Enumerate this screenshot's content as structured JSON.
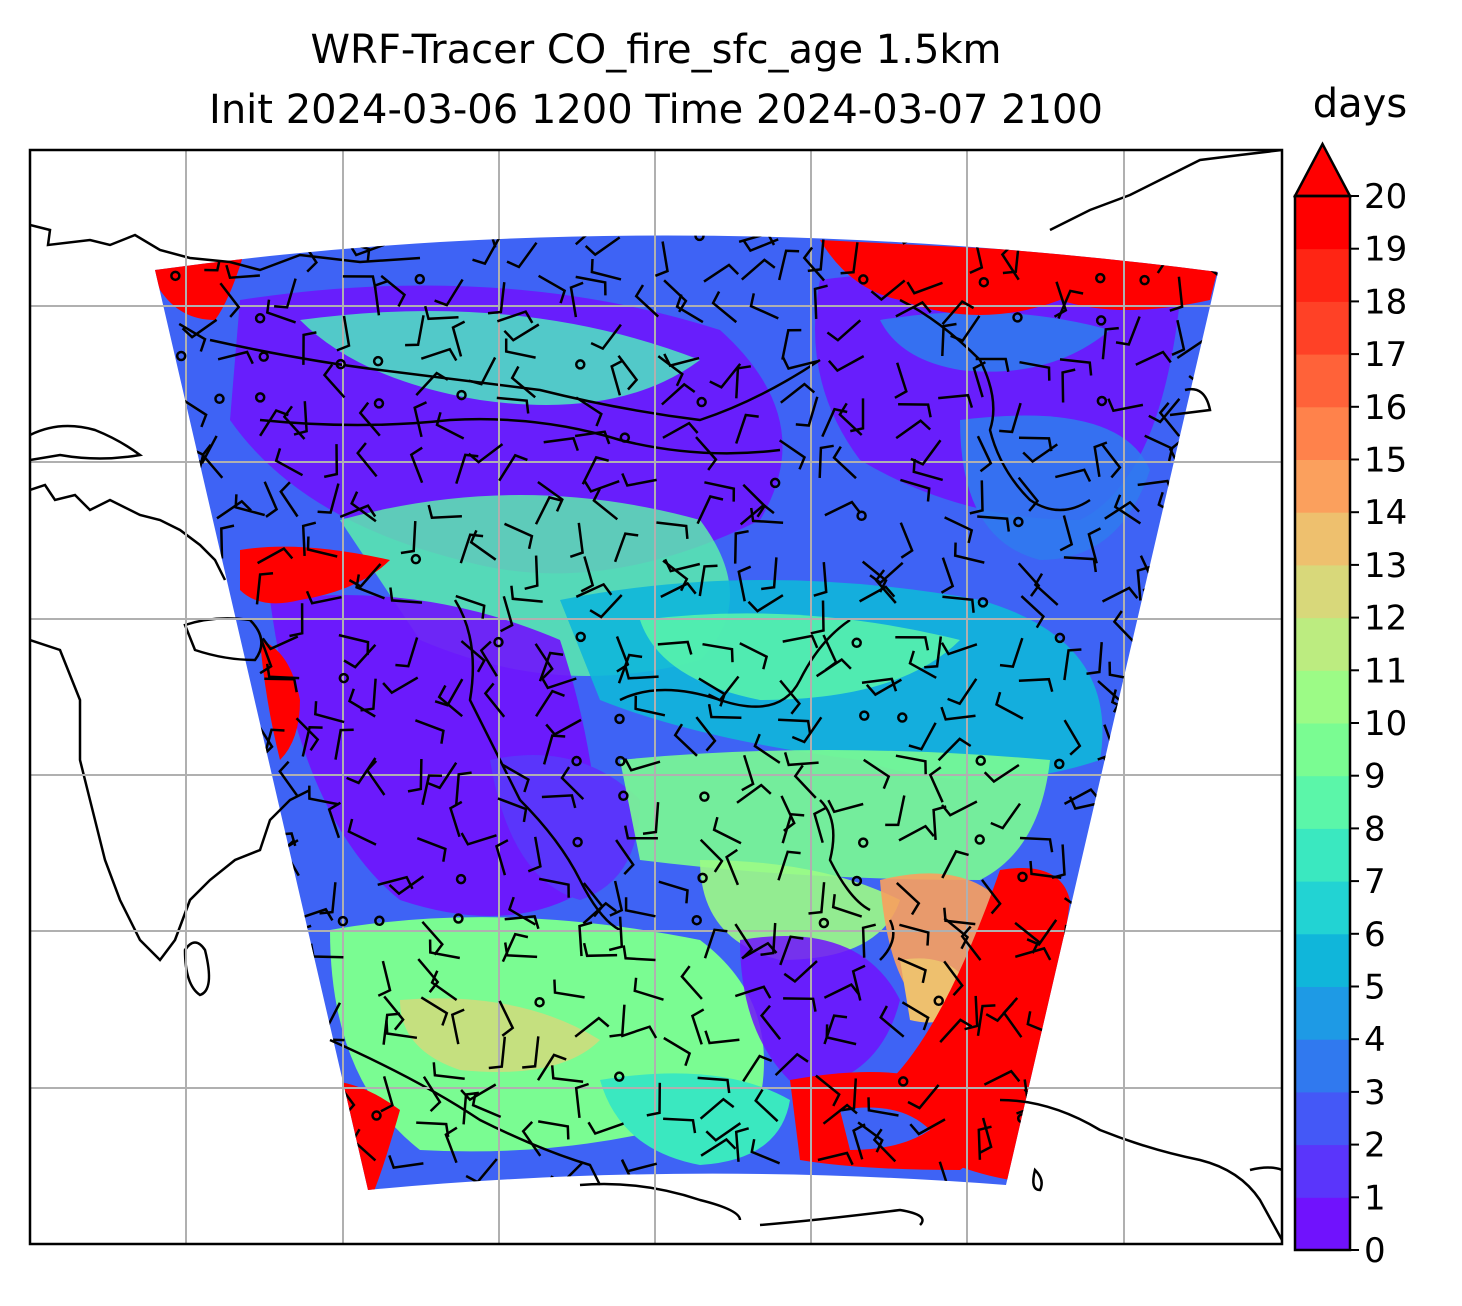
{
  "title_line1": "WRF-Tracer CO_fire_sfc_age 1.5km",
  "title_line2": "Init 2024-03-06 1200 Time 2024-03-07 2100",
  "colorbar": {
    "label": "days",
    "ticks": [
      "0",
      "1",
      "2",
      "3",
      "4",
      "5",
      "6",
      "7",
      "8",
      "9",
      "10",
      "11",
      "12",
      "13",
      "14",
      "15",
      "16",
      "17",
      "18",
      "19",
      "20"
    ],
    "extend": "max",
    "colors": [
      "#7012fd",
      "#5a35fb",
      "#4458f7",
      "#3079ef",
      "#1e9ae5",
      "#10b6da",
      "#22d3d3",
      "#3ae8c0",
      "#5bf6a9",
      "#7afc92",
      "#9cfb86",
      "#bcec80",
      "#d8d87a",
      "#eec06e",
      "#fba05d",
      "#ff824b",
      "#ff6239",
      "#ff4126",
      "#ff2514",
      "#ff0000",
      "#ff0000"
    ]
  },
  "map": {
    "gridlines": "on",
    "field": "CO_fire_sfc_age",
    "units": "days",
    "overlay": "wind barbs"
  }
}
